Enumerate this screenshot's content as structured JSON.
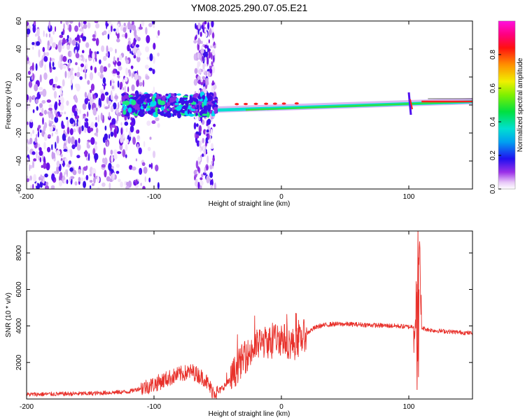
{
  "chart_data": [
    {
      "type": "heatmap",
      "title": "YM08.2025.290.07.05.E21",
      "xlabel": "Height of straight line (km)",
      "ylabel": "Frequency (Hz)",
      "xlim": [
        -200,
        150
      ],
      "ylim": [
        -60,
        60
      ],
      "x_ticks": [
        "-200",
        "-100",
        "0",
        "100"
      ],
      "y_ticks": [
        "60",
        "40",
        "20",
        "0",
        "-20",
        "-40",
        "-60"
      ],
      "colorbar": {
        "label": "Normalized spectral amplitude",
        "range": [
          0,
          1
        ],
        "ticks": [
          "0.0",
          "0.2",
          "0.4",
          "0.6",
          "0.8"
        ]
      },
      "features": {
        "noise_region_x": [
          -200,
          -110
        ],
        "noise_band_x": [
          -68,
          -52
        ],
        "signal_line_y_start": 0,
        "signal_line_y_end": 2,
        "transient_x": 100
      }
    },
    {
      "type": "line",
      "xlabel": "Height of straight line (km)",
      "ylabel": "SNR (10 * v/v)",
      "xlim": [
        -200,
        150
      ],
      "ylim": [
        0,
        9200
      ],
      "x_ticks": [
        "-200",
        "-100",
        "0",
        "100"
      ],
      "y_ticks": [
        "2000",
        "4000",
        "6000",
        "8000"
      ],
      "color": "#e8302a",
      "series": [
        {
          "name": "SNR",
          "x": [
            -200,
            -150,
            -120,
            -100,
            -90,
            -80,
            -70,
            -60,
            -55,
            -50,
            -45,
            -40,
            -35,
            -30,
            -25,
            -20,
            -15,
            -10,
            -5,
            0,
            5,
            10,
            15,
            20,
            25,
            30,
            35,
            40,
            50,
            60,
            70,
            80,
            90,
            100,
            105,
            106,
            107,
            108,
            110,
            115,
            120,
            130,
            140,
            150
          ],
          "values": [
            250,
            300,
            400,
            800,
            1100,
            1350,
            1500,
            1100,
            500,
            350,
            700,
            1000,
            1700,
            2200,
            2500,
            2900,
            3100,
            3100,
            3300,
            3400,
            3100,
            3000,
            3300,
            3600,
            3850,
            4000,
            4050,
            4100,
            4100,
            4080,
            4050,
            4020,
            4000,
            3950,
            4000,
            6300,
            1200,
            8800,
            3900,
            3800,
            3750,
            3700,
            3650,
            3600
          ]
        }
      ]
    }
  ]
}
